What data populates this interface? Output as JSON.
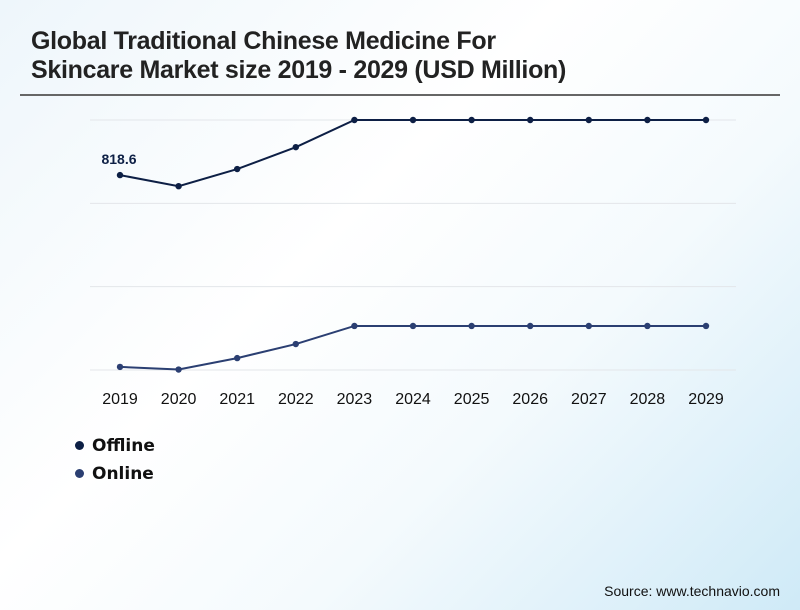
{
  "chart_data": {
    "type": "line",
    "title": "Global Traditional Chinese Medicine For Skincare Market size 2019 - 2029 (USD Million)",
    "xlabel": "",
    "ylabel": "",
    "categories": [
      "2019",
      "2020",
      "2021",
      "2022",
      "2023",
      "2024",
      "2025",
      "2026",
      "2027",
      "2028",
      "2029"
    ],
    "ylim": [
      0,
      1050
    ],
    "grid": true,
    "legend_position": "bottom-left",
    "series": [
      {
        "name": "Offline",
        "color": "#0d1f45",
        "values": [
          818.6,
          772,
          844,
          936,
          1050,
          1050,
          1050,
          1050,
          1050,
          1050,
          1050
        ],
        "data_labels": [
          "818.6"
        ]
      },
      {
        "name": "Online",
        "color": "#2b3f72",
        "values": [
          13,
          2,
          50,
          109,
          185,
          185,
          185,
          185,
          185,
          185,
          185
        ]
      }
    ],
    "source": "Source: www.technavio.com"
  }
}
